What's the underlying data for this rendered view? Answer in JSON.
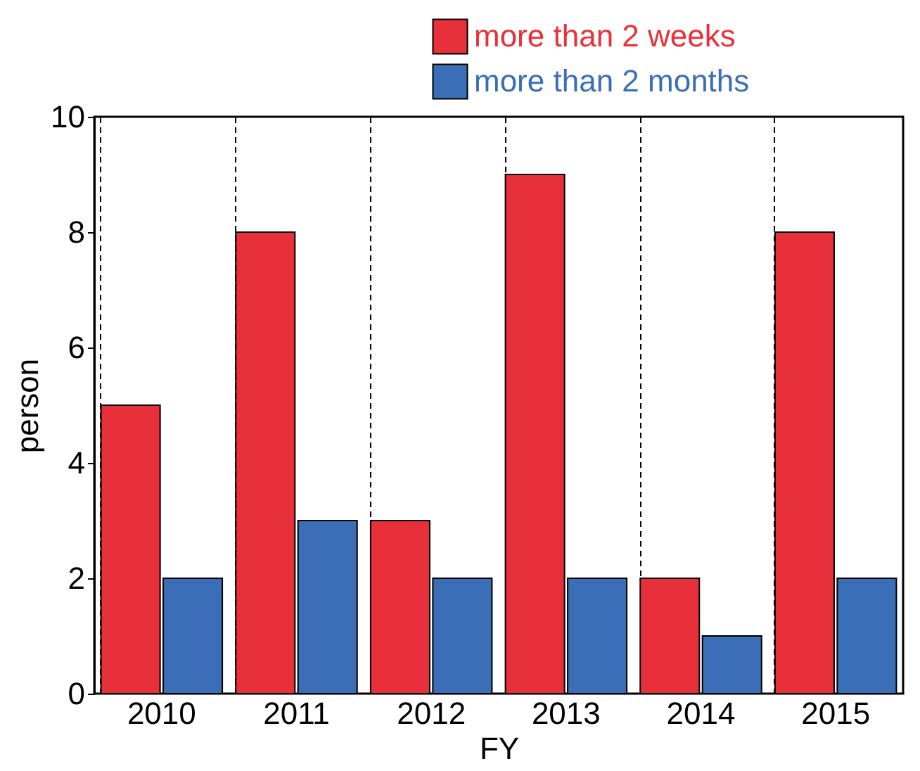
{
  "chart_data": {
    "type": "bar",
    "xlabel": "FY",
    "ylabel": "person",
    "categories": [
      "2010",
      "2011",
      "2012",
      "2013",
      "2014",
      "2015"
    ],
    "series": [
      {
        "name": "more than 2 weeks",
        "color": "#e8303a",
        "values": [
          5,
          8,
          3,
          9,
          2,
          8
        ]
      },
      {
        "name": "more than 2 months",
        "color": "#3a6fb8",
        "values": [
          2,
          3,
          2,
          2,
          1,
          2
        ]
      }
    ],
    "ylim": [
      0,
      10
    ],
    "yticks": [
      0,
      2,
      4,
      6,
      8,
      10
    ],
    "grid": "x",
    "legend": "top right"
  }
}
